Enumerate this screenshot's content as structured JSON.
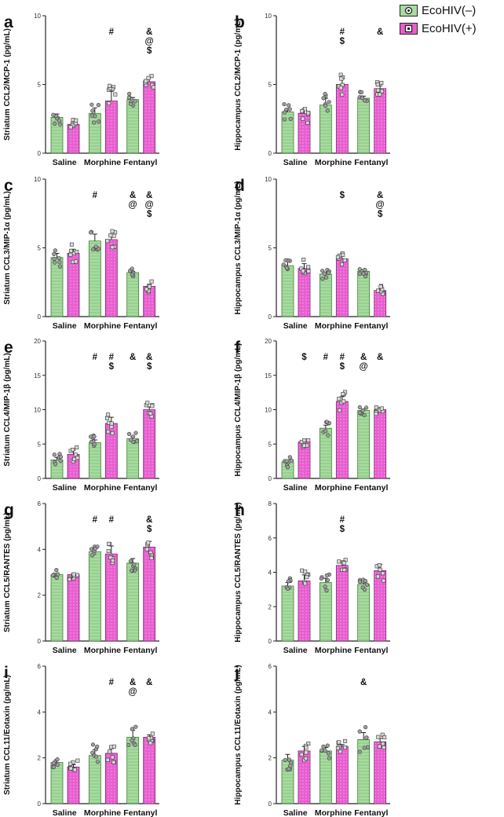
{
  "legend": [
    {
      "label": "EcoHIV(–)",
      "color": "#a8dba0"
    },
    {
      "label": "EcoHIV(+)",
      "color": "#e85ed0"
    }
  ],
  "chart_data": [
    {
      "type": "bar",
      "panel": "a",
      "ylabel": "Striatum CCL2/MCP-1 (pg/mL)",
      "ylim": [
        0,
        10
      ],
      "yticks": [
        0,
        5,
        10
      ],
      "categories": [
        "Saline",
        "Morphine",
        "Fentanyl"
      ],
      "series": [
        {
          "name": "EcoHIV(–)",
          "values": [
            2.6,
            2.9,
            3.9
          ],
          "sem": [
            0.25,
            0.4,
            0.15
          ]
        },
        {
          "name": "EcoHIV(+)",
          "values": [
            2.1,
            3.8,
            5.2
          ],
          "sem": [
            0.1,
            0.7,
            0.3
          ]
        }
      ],
      "annotations": [
        {
          "category": "Morphine",
          "series": "EcoHIV(+)",
          "text": [
            "#"
          ]
        },
        {
          "category": "Fentanyl",
          "series": "EcoHIV(+)",
          "text": [
            "&",
            "@",
            "$"
          ]
        }
      ]
    },
    {
      "type": "bar",
      "panel": "b",
      "ylabel": "Hippocampus CCL2/MCP-1 (pg/mL)",
      "ylim": [
        0,
        10
      ],
      "yticks": [
        0,
        5,
        10
      ],
      "categories": [
        "Saline",
        "Morphine",
        "Fentanyl"
      ],
      "series": [
        {
          "name": "EcoHIV(–)",
          "values": [
            3.0,
            3.5,
            4.0
          ],
          "sem": [
            0.25,
            0.5,
            0.15
          ]
        },
        {
          "name": "EcoHIV(+)",
          "values": [
            2.9,
            5.0,
            4.7
          ],
          "sem": [
            0.35,
            0.45,
            0.2
          ]
        }
      ],
      "annotations": [
        {
          "category": "Morphine",
          "series": "EcoHIV(+)",
          "text": [
            "#",
            "$"
          ]
        },
        {
          "category": "Fentanyl",
          "series": "EcoHIV(+)",
          "text": [
            "&"
          ]
        }
      ]
    },
    {
      "type": "bar",
      "panel": "c",
      "ylabel": "Striatum CCL3/MIP-1α (pg/mL)",
      "ylim": [
        0,
        10
      ],
      "yticks": [
        0,
        5,
        10
      ],
      "categories": [
        "Saline",
        "Morphine",
        "Fentanyl"
      ],
      "series": [
        {
          "name": "EcoHIV(–)",
          "values": [
            4.3,
            5.5,
            3.2
          ],
          "sem": [
            0.3,
            0.5,
            0.08
          ]
        },
        {
          "name": "EcoHIV(+)",
          "values": [
            4.6,
            5.6,
            2.2
          ],
          "sem": [
            0.3,
            0.3,
            0.12
          ]
        }
      ],
      "annotations": [
        {
          "category": "Morphine",
          "series": "EcoHIV(–)",
          "text": [
            "#"
          ]
        },
        {
          "category": "Fentanyl",
          "series": "EcoHIV(–)",
          "text": [
            "&",
            "@"
          ]
        },
        {
          "category": "Fentanyl",
          "series": "EcoHIV(+)",
          "text": [
            "&",
            "@",
            "$"
          ]
        }
      ]
    },
    {
      "type": "bar",
      "panel": "d",
      "ylabel": "Hippocampus CCL3/MIP-1α (pg/mL)",
      "ylim": [
        0,
        10
      ],
      "yticks": [
        0,
        5,
        10
      ],
      "categories": [
        "Saline",
        "Morphine",
        "Fentanyl"
      ],
      "series": [
        {
          "name": "EcoHIV(–)",
          "values": [
            3.7,
            3.1,
            3.3
          ],
          "sem": [
            0.3,
            0.12,
            0.1
          ]
        },
        {
          "name": "EcoHIV(+)",
          "values": [
            3.5,
            4.2,
            1.9
          ],
          "sem": [
            0.35,
            0.2,
            0.1
          ]
        }
      ],
      "annotations": [
        {
          "category": "Morphine",
          "series": "EcoHIV(+)",
          "text": [
            "$"
          ]
        },
        {
          "category": "Fentanyl",
          "series": "EcoHIV(+)",
          "text": [
            "&",
            "@",
            "$"
          ]
        }
      ]
    },
    {
      "type": "bar",
      "panel": "e",
      "ylabel": "Striatum CCL4/MIP-1β (pg/mL)",
      "ylim": [
        0,
        20
      ],
      "yticks": [
        0,
        5,
        10,
        15,
        20
      ],
      "categories": [
        "Saline",
        "Morphine",
        "Fentanyl"
      ],
      "series": [
        {
          "name": "EcoHIV(–)",
          "values": [
            2.7,
            5.2,
            5.8
          ],
          "sem": [
            0.35,
            0.4,
            0.3
          ]
        },
        {
          "name": "EcoHIV(+)",
          "values": [
            3.5,
            8.0,
            10.0
          ],
          "sem": [
            0.6,
            0.9,
            0.4
          ]
        }
      ],
      "annotations": [
        {
          "category": "Morphine",
          "series": "EcoHIV(–)",
          "text": [
            "#"
          ]
        },
        {
          "category": "Morphine",
          "series": "EcoHIV(+)",
          "text": [
            "#",
            "$"
          ]
        },
        {
          "category": "Fentanyl",
          "series": "EcoHIV(–)",
          "text": [
            "&"
          ]
        },
        {
          "category": "Fentanyl",
          "series": "EcoHIV(+)",
          "text": [
            "&",
            "$"
          ]
        }
      ]
    },
    {
      "type": "bar",
      "panel": "f",
      "ylabel": "Hippocampus CCL4/MIP-1β (pg/mL)",
      "ylim": [
        0,
        20
      ],
      "yticks": [
        0,
        5,
        10,
        15,
        20
      ],
      "categories": [
        "Saline",
        "Morphine",
        "Fentanyl"
      ],
      "series": [
        {
          "name": "EcoHIV(–)",
          "values": [
            2.4,
            7.3,
            9.9
          ],
          "sem": [
            0.3,
            0.45,
            0.2
          ]
        },
        {
          "name": "EcoHIV(+)",
          "values": [
            5.3,
            11.2,
            10.0
          ],
          "sem": [
            0.15,
            0.7,
            0.15
          ]
        }
      ],
      "annotations": [
        {
          "category": "Saline",
          "series": "EcoHIV(+)",
          "text": [
            "$"
          ]
        },
        {
          "category": "Morphine",
          "series": "EcoHIV(–)",
          "text": [
            "#"
          ]
        },
        {
          "category": "Morphine",
          "series": "EcoHIV(+)",
          "text": [
            "#",
            "$"
          ]
        },
        {
          "category": "Fentanyl",
          "series": "EcoHIV(–)",
          "text": [
            "&",
            "@"
          ]
        },
        {
          "category": "Fentanyl",
          "series": "EcoHIV(+)",
          "text": [
            "&"
          ]
        }
      ]
    },
    {
      "type": "bar",
      "panel": "g",
      "ylabel": "Striatum CCL5/RANTES (pg/mL)",
      "ylim": [
        0,
        6
      ],
      "yticks": [
        0,
        2,
        4,
        6
      ],
      "categories": [
        "Saline",
        "Morphine",
        "Fentanyl"
      ],
      "series": [
        {
          "name": "EcoHIV(–)",
          "values": [
            2.9,
            3.9,
            3.4
          ],
          "sem": [
            0.05,
            0.15,
            0.2
          ]
        },
        {
          "name": "EcoHIV(+)",
          "values": [
            2.9,
            3.8,
            4.1
          ],
          "sem": [
            0.05,
            0.35,
            0.25
          ]
        }
      ],
      "annotations": [
        {
          "category": "Morphine",
          "series": "EcoHIV(–)",
          "text": [
            "#"
          ]
        },
        {
          "category": "Morphine",
          "series": "EcoHIV(+)",
          "text": [
            "#"
          ]
        },
        {
          "category": "Fentanyl",
          "series": "EcoHIV(+)",
          "text": [
            "&",
            "$"
          ]
        }
      ]
    },
    {
      "type": "bar",
      "panel": "h",
      "ylabel": "Hippocampus CCL5/RANTES (pg/mL)",
      "ylim": [
        0,
        8
      ],
      "yticks": [
        0,
        2,
        4,
        6,
        8
      ],
      "categories": [
        "Saline",
        "Morphine",
        "Fentanyl"
      ],
      "series": [
        {
          "name": "EcoHIV(–)",
          "values": [
            3.2,
            3.4,
            3.3
          ],
          "sem": [
            0.2,
            0.25,
            0.08
          ]
        },
        {
          "name": "EcoHIV(+)",
          "values": [
            3.5,
            4.4,
            4.1
          ],
          "sem": [
            0.35,
            0.2,
            0.35
          ]
        }
      ],
      "annotations": [
        {
          "category": "Morphine",
          "series": "EcoHIV(+)",
          "text": [
            "#",
            "$"
          ]
        }
      ]
    },
    {
      "type": "bar",
      "panel": "i",
      "ylabel": "Striatum CCL11/Eotaxin (pg/mL)",
      "ylim": [
        0,
        6
      ],
      "yticks": [
        0,
        2,
        4,
        6
      ],
      "categories": [
        "Saline",
        "Morphine",
        "Fentanyl"
      ],
      "series": [
        {
          "name": "EcoHIV(–)",
          "values": [
            1.8,
            2.1,
            2.9
          ],
          "sem": [
            0.12,
            0.25,
            0.3
          ]
        },
        {
          "name": "EcoHIV(+)",
          "values": [
            1.6,
            2.2,
            2.9
          ],
          "sem": [
            0.1,
            0.2,
            0.1
          ]
        }
      ],
      "annotations": [
        {
          "category": "Morphine",
          "series": "EcoHIV(+)",
          "text": [
            "#"
          ]
        },
        {
          "category": "Fentanyl",
          "series": "EcoHIV(–)",
          "text": [
            "&",
            "@"
          ]
        },
        {
          "category": "Fentanyl",
          "series": "EcoHIV(+)",
          "text": [
            "&"
          ]
        }
      ]
    },
    {
      "type": "bar",
      "panel": "j",
      "ylabel": "Hippocampus CCL11/Eotaxin (pg/mL)",
      "ylim": [
        0,
        6
      ],
      "yticks": [
        0,
        2,
        4,
        6
      ],
      "categories": [
        "Saline",
        "Morphine",
        "Fentanyl"
      ],
      "series": [
        {
          "name": "EcoHIV(–)",
          "values": [
            1.9,
            2.3,
            2.8
          ],
          "sem": [
            0.25,
            0.15,
            0.3
          ]
        },
        {
          "name": "EcoHIV(+)",
          "values": [
            2.3,
            2.5,
            2.7
          ],
          "sem": [
            0.2,
            0.08,
            0.15
          ]
        }
      ],
      "annotations": [
        {
          "category": "Fentanyl",
          "series": "EcoHIV(–)",
          "text": [
            "&"
          ]
        }
      ]
    }
  ]
}
